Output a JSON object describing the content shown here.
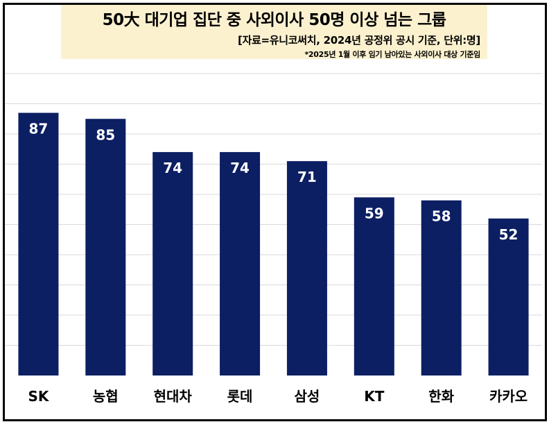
{
  "header": {
    "title": "50大 대기업 집단  중 사외이사 50명 이상 넘는 그룹",
    "source": "[자료=유니코써치, 2024년 공정위 공시 기준, 단위:명]",
    "note": "*2025년 1월 이후 임기 남아있는 사외이사 대상 기준임"
  },
  "colors": {
    "bar": "#0c1f63",
    "grid": "#d9d9d9",
    "title_bg": "#fbf1cf"
  },
  "chart_data": {
    "type": "bar",
    "categories": [
      "SK",
      "농협",
      "현대차",
      "롯데",
      "삼성",
      "KT",
      "한화",
      "카카오"
    ],
    "values": [
      87,
      85,
      74,
      74,
      71,
      59,
      58,
      52
    ],
    "title": "50大 대기업 집단  중 사외이사 50명 이상 넘는 그룹",
    "xlabel": "",
    "ylabel": "",
    "ylim": [
      0,
      100
    ],
    "grid": true,
    "data_labels": true,
    "legend": "none"
  }
}
